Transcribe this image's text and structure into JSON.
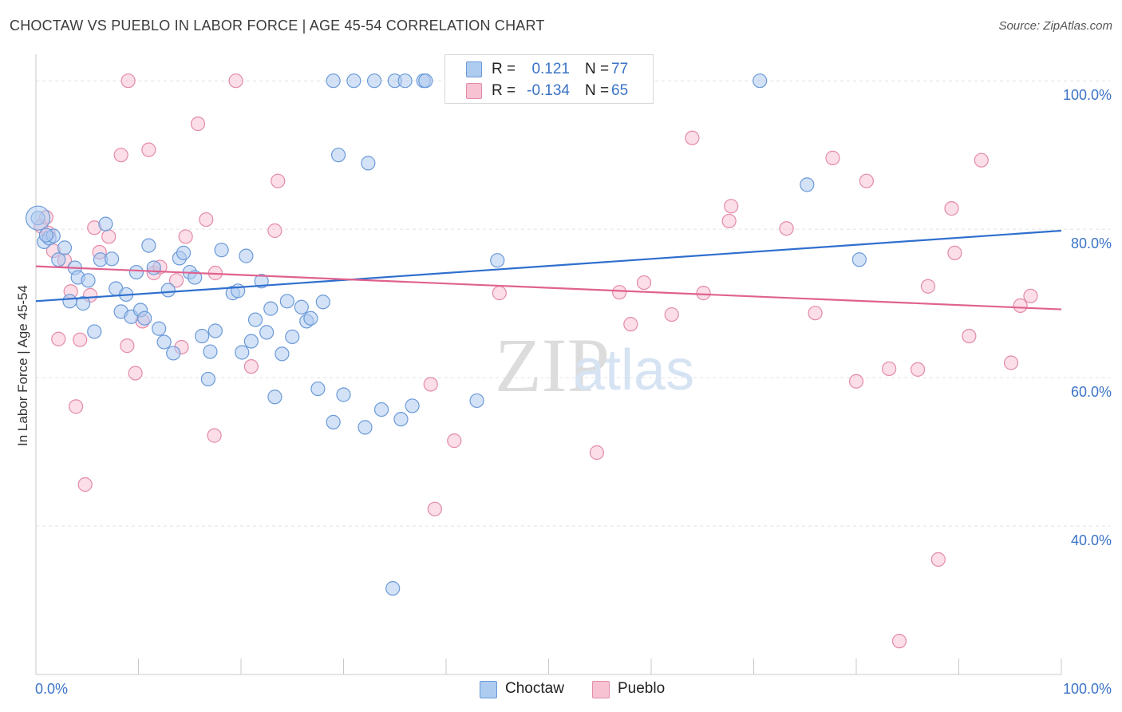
{
  "title": "CHOCTAW VS PUEBLO IN LABOR FORCE | AGE 45-54 CORRELATION CHART",
  "source": "Source: ZipAtlas.com",
  "watermark": {
    "zip": "ZIP",
    "atlas": "atlas"
  },
  "colors": {
    "choctaw_fill": "#aecbf0",
    "choctaw_stroke": "#6b9ad8",
    "choctaw_line": "#2f6fce",
    "pueblo_fill": "#f7c3d3",
    "pueblo_stroke": "#e48aa8",
    "pueblo_line": "#e0628f",
    "axis_text": "#3b73c6",
    "grid": "#e2e2e2"
  },
  "legend": {
    "rows": [
      {
        "r_label": "R =",
        "r_value": "0.121",
        "n_label": "N =",
        "n_value": "77"
      },
      {
        "r_label": "R =",
        "r_value": "-0.134",
        "n_label": "N =",
        "n_value": "65"
      }
    ]
  },
  "bottom_legend": [
    "Choctaw",
    "Pueblo"
  ],
  "chart_data": {
    "type": "scatter",
    "title": "CHOCTAW VS PUEBLO IN LABOR FORCE | AGE 45-54 CORRELATION CHART",
    "xlabel": "",
    "ylabel": "In Labor Force | Age 45-54",
    "xlim": [
      0,
      100
    ],
    "ylim": [
      20,
      104
    ],
    "x_tick_labels": [
      "0.0%",
      "100.0%"
    ],
    "y_ticks": [
      40,
      60,
      80,
      100
    ],
    "y_tick_labels": [
      "40.0%",
      "60.0%",
      "80.0%",
      "100.0%"
    ],
    "grid": true,
    "legend_position": "top-center",
    "series": [
      {
        "name": "Choctaw",
        "r": 0.121,
        "n": 77,
        "trend": {
          "x": [
            0,
            100
          ],
          "y": [
            70.3,
            79.8
          ]
        },
        "points": [
          [
            0.2,
            81.5
          ],
          [
            0.8,
            78.3
          ],
          [
            1.3,
            78.8
          ],
          [
            1.7,
            79.1
          ],
          [
            2.2,
            75.9
          ],
          [
            2.8,
            77.5
          ],
          [
            3.3,
            70.3
          ],
          [
            3.8,
            74.8
          ],
          [
            4.1,
            73.5
          ],
          [
            4.6,
            70.0
          ],
          [
            5.1,
            73.1
          ],
          [
            5.7,
            66.2
          ],
          [
            6.3,
            75.9
          ],
          [
            6.8,
            80.7
          ],
          [
            7.4,
            76.0
          ],
          [
            7.8,
            72.0
          ],
          [
            8.3,
            68.9
          ],
          [
            8.8,
            71.2
          ],
          [
            9.3,
            68.2
          ],
          [
            9.8,
            74.2
          ],
          [
            10.2,
            69.1
          ],
          [
            10.6,
            68.0
          ],
          [
            11.0,
            77.8
          ],
          [
            11.5,
            74.8
          ],
          [
            12.0,
            66.6
          ],
          [
            12.5,
            64.8
          ],
          [
            12.9,
            71.8
          ],
          [
            13.4,
            63.3
          ],
          [
            14.0,
            76.1
          ],
          [
            14.4,
            76.8
          ],
          [
            15.0,
            74.2
          ],
          [
            15.5,
            73.5
          ],
          [
            16.2,
            65.6
          ],
          [
            16.8,
            59.8
          ],
          [
            17.0,
            63.5
          ],
          [
            17.5,
            66.3
          ],
          [
            18.1,
            77.2
          ],
          [
            19.2,
            71.4
          ],
          [
            19.7,
            71.7
          ],
          [
            20.1,
            63.4
          ],
          [
            20.5,
            76.4
          ],
          [
            21.0,
            64.9
          ],
          [
            21.4,
            67.8
          ],
          [
            22.0,
            73.0
          ],
          [
            22.5,
            66.1
          ],
          [
            22.9,
            69.3
          ],
          [
            23.3,
            57.4
          ],
          [
            24.0,
            63.2
          ],
          [
            24.5,
            70.3
          ],
          [
            25.0,
            65.5
          ],
          [
            25.9,
            69.5
          ],
          [
            26.4,
            67.6
          ],
          [
            26.8,
            68.0
          ],
          [
            27.5,
            58.5
          ],
          [
            28.0,
            70.2
          ],
          [
            29.0,
            54.0
          ],
          [
            29.5,
            90.0
          ],
          [
            30.0,
            57.7
          ],
          [
            32.1,
            53.3
          ],
          [
            32.4,
            88.9
          ],
          [
            33.7,
            55.7
          ],
          [
            34.8,
            31.6
          ],
          [
            35.6,
            54.4
          ],
          [
            36.7,
            56.2
          ],
          [
            37.8,
            100.0
          ],
          [
            43.0,
            56.9
          ],
          [
            45.0,
            75.8
          ],
          [
            29.0,
            100.0
          ],
          [
            31.0,
            100.0
          ],
          [
            33.0,
            100.0
          ],
          [
            35.0,
            100.0
          ],
          [
            36.0,
            100.0
          ],
          [
            70.6,
            100.0
          ],
          [
            75.2,
            86.0
          ],
          [
            80.3,
            75.9
          ],
          [
            38.0,
            100.0
          ],
          [
            1.0,
            79.2
          ]
        ]
      },
      {
        "name": "Pueblo",
        "r": -0.134,
        "n": 65,
        "trend": {
          "x": [
            0,
            100
          ],
          "y": [
            75.0,
            69.2
          ]
        },
        "points": [
          [
            0.5,
            80.4
          ],
          [
            1.2,
            79.5
          ],
          [
            1.7,
            77.1
          ],
          [
            2.2,
            65.2
          ],
          [
            2.8,
            75.8
          ],
          [
            3.4,
            71.6
          ],
          [
            3.9,
            56.1
          ],
          [
            4.3,
            65.1
          ],
          [
            4.8,
            45.6
          ],
          [
            5.3,
            71.1
          ],
          [
            5.7,
            80.2
          ],
          [
            6.2,
            76.9
          ],
          [
            7.1,
            79.0
          ],
          [
            8.3,
            90.0
          ],
          [
            8.9,
            64.3
          ],
          [
            9.0,
            100.0
          ],
          [
            9.7,
            60.6
          ],
          [
            10.4,
            67.6
          ],
          [
            11.0,
            90.7
          ],
          [
            11.5,
            74.1
          ],
          [
            12.1,
            74.9
          ],
          [
            13.7,
            73.1
          ],
          [
            14.2,
            64.1
          ],
          [
            14.6,
            79.0
          ],
          [
            15.8,
            94.2
          ],
          [
            16.6,
            81.3
          ],
          [
            17.5,
            74.1
          ],
          [
            17.4,
            52.2
          ],
          [
            19.5,
            100.0
          ],
          [
            21.0,
            61.5
          ],
          [
            23.3,
            79.8
          ],
          [
            23.6,
            86.5
          ],
          [
            38.5,
            59.1
          ],
          [
            38.9,
            42.3
          ],
          [
            40.8,
            51.5
          ],
          [
            45.2,
            71.4
          ],
          [
            46.5,
            100.0
          ],
          [
            52.0,
            100.0
          ],
          [
            54.7,
            49.9
          ],
          [
            56.9,
            71.5
          ],
          [
            58.0,
            67.2
          ],
          [
            59.3,
            72.8
          ],
          [
            62.0,
            68.5
          ],
          [
            64.0,
            92.3
          ],
          [
            65.1,
            71.4
          ],
          [
            67.6,
            81.1
          ],
          [
            67.8,
            83.1
          ],
          [
            73.2,
            80.1
          ],
          [
            76.0,
            68.7
          ],
          [
            77.7,
            89.6
          ],
          [
            80.0,
            59.5
          ],
          [
            81.0,
            86.5
          ],
          [
            83.2,
            61.2
          ],
          [
            84.2,
            24.5
          ],
          [
            86.0,
            61.1
          ],
          [
            87.0,
            72.3
          ],
          [
            88.0,
            35.5
          ],
          [
            89.3,
            82.8
          ],
          [
            89.6,
            76.8
          ],
          [
            91.0,
            65.6
          ],
          [
            92.2,
            89.3
          ],
          [
            95.1,
            62.0
          ],
          [
            96.0,
            69.7
          ],
          [
            97.0,
            71.0
          ],
          [
            1.0,
            81.6
          ]
        ]
      }
    ]
  }
}
